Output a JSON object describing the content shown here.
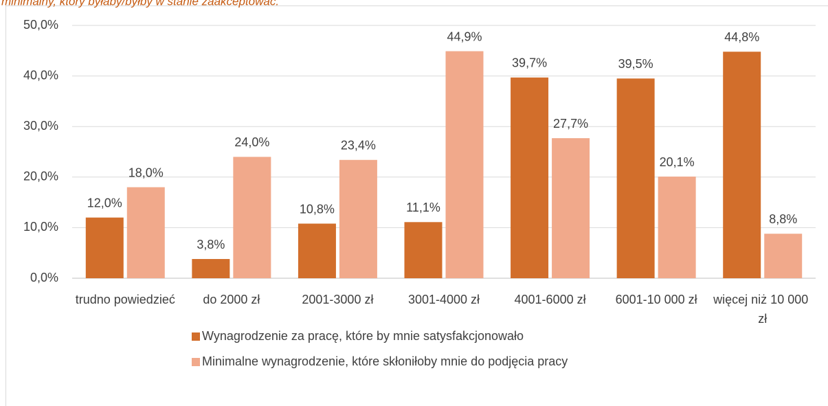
{
  "chart_data": {
    "type": "bar",
    "title": "minimalny, który byłaby/byłby w stanie zaakceptować.",
    "categories": [
      "trudno powiedzieć",
      "do 2000 zł",
      "2001-3000 zł",
      "3001-4000 zł",
      "4001-6000 zł",
      "6001-10 000 zł",
      "więcej niż 10 000 zł"
    ],
    "series": [
      {
        "name": "Wynagrodzenie za pracę, które by mnie satysfakcjonowało",
        "color": "#d26e2b",
        "values": [
          12.0,
          3.8,
          10.8,
          11.1,
          39.7,
          39.5,
          44.8
        ],
        "value_labels": [
          "12,0%",
          "3,8%",
          "10,8%",
          "11,1%",
          "39,7%",
          "39,5%",
          "44,8%"
        ]
      },
      {
        "name": "Minimalne wynagrodzenie, które skłoniłoby mnie do podjęcia pracy",
        "color": "#f1a98b",
        "values": [
          18.0,
          24.0,
          23.4,
          44.9,
          27.7,
          20.1,
          8.8
        ],
        "value_labels": [
          "18,0%",
          "24,0%",
          "23,4%",
          "44,9%",
          "27,7%",
          "20,1%",
          "8,8%"
        ]
      }
    ],
    "ylim": [
      0,
      50
    ],
    "yticks": [
      {
        "value": 0,
        "label": "0,0%"
      },
      {
        "value": 10,
        "label": "10,0%"
      },
      {
        "value": 20,
        "label": "20,0%"
      },
      {
        "value": 30,
        "label": "30,0%"
      },
      {
        "value": 40,
        "label": "40,0%"
      },
      {
        "value": 50,
        "label": "50,0%"
      }
    ],
    "grid": true
  }
}
